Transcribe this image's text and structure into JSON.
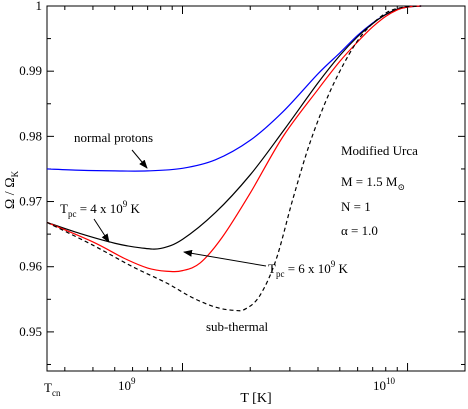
{
  "chart_data": {
    "type": "line",
    "xlabel": "T [K]",
    "ylabel": "Ω / Ω_K",
    "x_scale": "log",
    "xlim": [
      250000000,
      18000000000
    ],
    "ylim": [
      0.944,
      1.0
    ],
    "y_ticks": [
      0.95,
      0.96,
      0.97,
      0.98,
      0.99,
      1
    ],
    "y_tick_labels": [
      "0.95",
      "0.96",
      "0.97",
      "0.98",
      "0.99",
      "1"
    ],
    "x_ticks": [
      {
        "value": 1000000000,
        "base": "10",
        "exp": "9"
      },
      {
        "value": 10000000000,
        "base": "10",
        "exp": "10"
      }
    ],
    "x_start_label": {
      "main": "T",
      "sub": "cn"
    },
    "grid": false,
    "series": [
      {
        "name": "normal protons",
        "color": "#0000ff",
        "style": "solid",
        "x": [
          250000000,
          350000000,
          500000000,
          700000000,
          1000000000,
          1400000000,
          2000000000,
          2800000000,
          4000000000,
          5000000000,
          6000000000,
          7000000000,
          8000000000,
          9000000000,
          10000000000,
          11500000000
        ],
        "y": [
          0.975,
          0.9748,
          0.9747,
          0.9747,
          0.9751,
          0.9764,
          0.9794,
          0.9838,
          0.9896,
          0.9928,
          0.9955,
          0.9974,
          0.9987,
          0.9995,
          0.99985,
          1.0
        ]
      },
      {
        "name": "T_pc = 4 x 10^9 K",
        "color": "#000000",
        "style": "solid",
        "x": [
          250000000,
          350000000,
          500000000,
          650000000,
          800000000,
          1000000000,
          1400000000,
          2000000000,
          2800000000,
          4000000000,
          5000000000,
          6000000000,
          7000000000,
          8000000000,
          9000000000,
          10000000000,
          11500000000
        ],
        "y": [
          0.9668,
          0.9651,
          0.9636,
          0.9629,
          0.9628,
          0.9642,
          0.9683,
          0.9741,
          0.9808,
          0.9882,
          0.9924,
          0.9953,
          0.9973,
          0.9987,
          0.9995,
          0.99985,
          1.0
        ]
      },
      {
        "name": "T_pc = 6 x 10^9 K",
        "color": "#ff0000",
        "style": "solid",
        "x": [
          250000000,
          400000000,
          550000000,
          700000000,
          850000000,
          1000000000,
          1200000000,
          1500000000,
          2000000000,
          2800000000,
          4000000000,
          5000000000,
          6000000000,
          7000000000,
          8000000000,
          9000000000,
          10000000000,
          11500000000
        ],
        "y": [
          0.9668,
          0.9638,
          0.9613,
          0.9598,
          0.9593,
          0.9594,
          0.9606,
          0.9645,
          0.9713,
          0.98,
          0.9872,
          0.9915,
          0.9945,
          0.9968,
          0.9984,
          0.9994,
          0.99985,
          1.0
        ]
      },
      {
        "name": "sub-thermal",
        "color": "#000000",
        "style": "dashed",
        "x": [
          250000000,
          400000000,
          600000000,
          850000000,
          1100000000,
          1400000000,
          1700000000,
          1900000000,
          2200000000,
          2600000000,
          3100000000,
          3700000000,
          4500000000,
          5500000000,
          6500000000,
          8000000000,
          9500000000,
          11500000000
        ],
        "y": [
          0.9668,
          0.9633,
          0.96,
          0.9575,
          0.9553,
          0.9538,
          0.9533,
          0.9535,
          0.9555,
          0.961,
          0.9705,
          0.9792,
          0.9867,
          0.9926,
          0.9962,
          0.9989,
          0.9998,
          1.0
        ]
      }
    ],
    "annotations": {
      "normal_protons": "normal protons",
      "tpc4": {
        "prefix": "T",
        "sub": "pc",
        "mid": " = 4 x 10",
        "sup": "9",
        "suffix": " K"
      },
      "tpc6": {
        "prefix": "T",
        "sub": "pc",
        "mid": " = 6 x 10",
        "sup": "9",
        "suffix": " K"
      },
      "sub_thermal": "sub-thermal",
      "info": {
        "title": "Modified Urca",
        "mass": {
          "main": "M = 1.5 M",
          "sub": "⊙"
        },
        "n": "N = 1",
        "alpha": "α = 1.0"
      }
    }
  }
}
